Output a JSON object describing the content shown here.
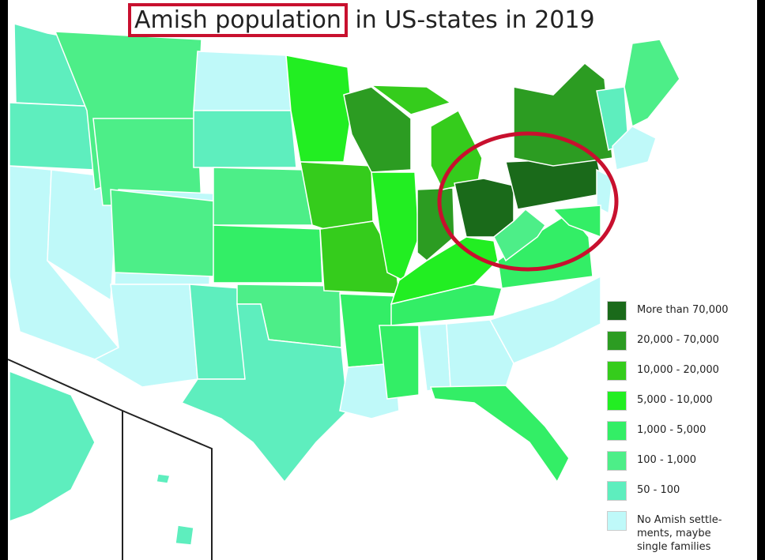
{
  "header": {
    "title": [
      "Amish population",
      "in US-states in 2019"
    ]
  },
  "legend": {
    "items": [
      {
        "label": "More than 70,000",
        "color": "#1a6a1a"
      },
      {
        "label": "20,000 - 70,000",
        "color": "#2c9c22"
      },
      {
        "label": "10,000 - 20,000",
        "color": "#35cc1c"
      },
      {
        "label": "5,000 - 10,000",
        "color": "#22ee22"
      },
      {
        "label": "1,000 - 5,000",
        "color": "#33ee66"
      },
      {
        "label": "100 - 1,000",
        "color": "#4dee88"
      },
      {
        "label": "50 - 100",
        "color": "#5eeebe"
      },
      {
        "label": "No Amish settle- ments, maybe single families",
        "color": "#bff9f9"
      }
    ]
  }
}
